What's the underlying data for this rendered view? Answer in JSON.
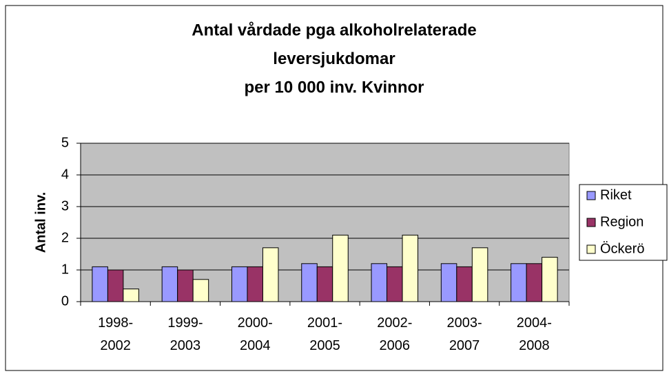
{
  "chart_data": {
    "type": "bar",
    "title": [
      "Antal vårdade pga alkoholrelaterade",
      "leversjukdomar",
      "per 10 000 inv. Kvinnor"
    ],
    "y_label": "Antal inv.",
    "categories": [
      "1998-\n2002",
      "1999-\n2003",
      "2000-\n2004",
      "2001-\n2005",
      "2002-\n2006",
      "2003-\n2007",
      "2004-\n2008"
    ],
    "series": [
      {
        "name": "Riket",
        "color": "#9999ff",
        "values": [
          1.1,
          1.1,
          1.1,
          1.2,
          1.2,
          1.2,
          1.2
        ]
      },
      {
        "name": "Region",
        "color": "#993366",
        "values": [
          1.0,
          1.0,
          1.1,
          1.1,
          1.1,
          1.1,
          1.2
        ]
      },
      {
        "name": "Öckerö",
        "color": "#ffffcc",
        "values": [
          0.4,
          0.7,
          1.7,
          2.1,
          2.1,
          1.7,
          1.4
        ]
      }
    ],
    "ylim": [
      0,
      5
    ],
    "yticks": [
      0,
      1,
      2,
      3,
      4,
      5
    ],
    "grid": true,
    "plot_background": "#c0c0c0",
    "legend": "right"
  }
}
